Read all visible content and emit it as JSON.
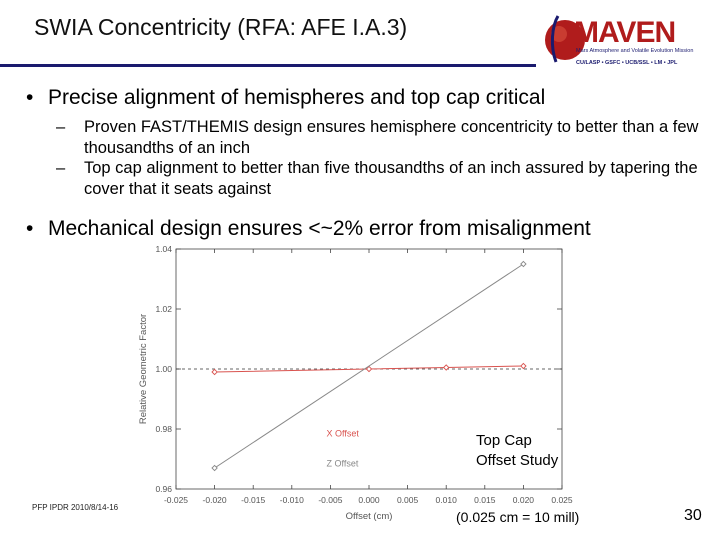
{
  "slide": {
    "title": "SWIA Concentricity (RFA: AFE I.A.3)",
    "bullets": [
      {
        "text": "Precise alignment of hemispheres and top cap critical",
        "subs": [
          "Proven FAST/THEMIS design ensures hemisphere concentricity to better than a few thousandths of an inch",
          "Top cap alignment to better than five thousandths of an inch assured by tapering the cover that it seats against"
        ]
      },
      {
        "text": "Mechanical design ensures <~2% error from misalignment"
      }
    ],
    "bullet_char": "•",
    "dash_char": "–",
    "plot_caption": [
      "Top Cap",
      "Offset Study"
    ],
    "footer_left": "PFP IPDR 2010/8/14-16",
    "footer_mid": "(0.025 cm = 10 mill)",
    "page_number": "30"
  },
  "logo": {
    "wordmark": "MAVEN",
    "tagline": "Mars Atmosphere and Volatile Evolution Mission",
    "partners": "CU/LASP • GSFC • UCB/SSL • LM • JPL"
  },
  "colors": {
    "title_rule": "#1a1a6e",
    "logo_red": "#b01c1c",
    "x_offset_series": "#d9534f",
    "z_offset_series": "#888888"
  },
  "chart_data": {
    "type": "line",
    "xlabel": "Offset (cm)",
    "ylabel": "Relative Geometric Factor",
    "xlim": [
      -0.025,
      0.025
    ],
    "ylim": [
      0.96,
      1.04
    ],
    "x_ticks": [
      "-0.025",
      "-0.020",
      "-0.015",
      "-0.010",
      "-0.005",
      "0.000",
      "0.005",
      "0.010",
      "0.015",
      "0.020",
      "0.025"
    ],
    "y_ticks": [
      "0.96",
      "0.98",
      "1.00",
      "1.02",
      "1.04"
    ],
    "reference_line_y": 1.0,
    "series": [
      {
        "name": "X Offset",
        "color": "#d9534f",
        "marker": "diamond",
        "x": [
          -0.02,
          0.0,
          0.01,
          0.02
        ],
        "y": [
          0.999,
          1.0,
          1.0005,
          1.001
        ]
      },
      {
        "name": "Z Offset",
        "color": "#888888",
        "marker": "diamond",
        "x": [
          -0.02,
          0.02
        ],
        "y": [
          0.967,
          1.035
        ]
      }
    ]
  }
}
